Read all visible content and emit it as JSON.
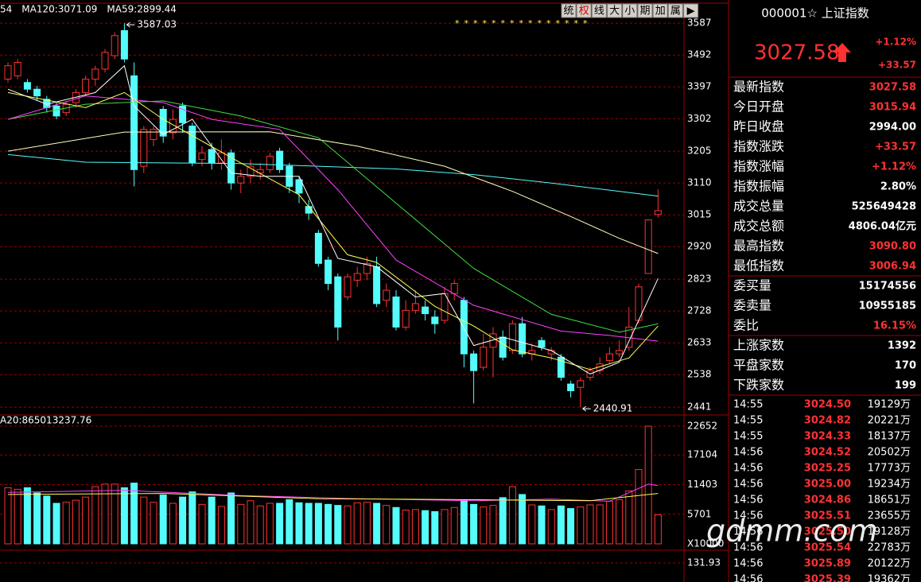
{
  "chart_data": {
    "type": "candlestick",
    "legend": [
      {
        "text": "54",
        "color": "#ffffff"
      },
      {
        "text": "MA120:3071.09",
        "color": "#54fcfc"
      },
      {
        "text": "MA59:2899.44",
        "color": "#ffff54"
      }
    ],
    "markers": "***************",
    "ylim": [
      2427,
      3604
    ],
    "yticks": [
      3587,
      3492,
      3397,
      3302,
      3205,
      3110,
      3015,
      2920,
      2823,
      2728,
      2633,
      2538,
      2441
    ],
    "grid": true,
    "up_color": "#ff3232",
    "down_color": "#54fcfc",
    "open": [
      3420,
      3430,
      3410,
      3390,
      3360,
      3340,
      3320,
      3350,
      3380,
      3420,
      3450,
      3490,
      3565,
      3430,
      3160,
      3240,
      3330,
      3260,
      3340,
      3280,
      3180,
      3210,
      3170,
      3200,
      3110,
      3130,
      3140,
      3150,
      3205,
      3160,
      3120,
      3040,
      2960,
      2880,
      2830,
      2770,
      2820,
      2840,
      2860,
      2760,
      2770,
      2680,
      2730,
      2740,
      2710,
      2700,
      2780,
      2760,
      2600,
      2560,
      2620,
      2650,
      2610,
      2690,
      2600,
      2640,
      2600,
      2590,
      2510,
      2500,
      2530,
      2550,
      2580,
      2600,
      2620,
      2700,
      2840,
      3015.94
    ],
    "high": [
      3470,
      3480,
      3420,
      3400,
      3370,
      3350,
      3355,
      3390,
      3430,
      3460,
      3510,
      3560,
      3587.03,
      3470,
      3280,
      3280,
      3340,
      3330,
      3350,
      3290,
      3220,
      3230,
      3240,
      3210,
      3150,
      3180,
      3170,
      3200,
      3215,
      3170,
      3130,
      3060,
      2970,
      2890,
      2840,
      2840,
      2860,
      2890,
      2890,
      2810,
      2790,
      2760,
      2790,
      2760,
      2730,
      2800,
      2820,
      2770,
      2610,
      2660,
      2680,
      2670,
      2700,
      2710,
      2630,
      2650,
      2620,
      2600,
      2520,
      2530,
      2560,
      2590,
      2620,
      2640,
      2740,
      2810,
      3000,
      3090.8
    ],
    "low": [
      3410,
      3420,
      3380,
      3355,
      3320,
      3300,
      3310,
      3335,
      3370,
      3400,
      3440,
      3480,
      3470,
      3100,
      3140,
      3220,
      3230,
      3240,
      3260,
      3160,
      3160,
      3150,
      3150,
      3090,
      3080,
      3110,
      3120,
      3140,
      3140,
      3080,
      3050,
      3000,
      2860,
      2790,
      2640,
      2760,
      2800,
      2820,
      2740,
      2740,
      2670,
      2670,
      2720,
      2700,
      2660,
      2690,
      2760,
      2560,
      2452,
      2550,
      2530,
      2580,
      2600,
      2590,
      2580,
      2610,
      2580,
      2520,
      2470,
      2440.91,
      2520,
      2540,
      2570,
      2590,
      2610,
      2690,
      2840,
      3006.94
    ],
    "close": [
      3460,
      3470,
      3390,
      3370,
      3335,
      3310,
      3345,
      3380,
      3420,
      3450,
      3500,
      3550,
      3480,
      3150,
      3270,
      3270,
      3250,
      3300,
      3290,
      3170,
      3200,
      3170,
      3200,
      3110,
      3130,
      3160,
      3150,
      3190,
      3150,
      3100,
      3080,
      3020,
      2870,
      2810,
      2680,
      2830,
      2840,
      2870,
      2750,
      2790,
      2680,
      2730,
      2750,
      2720,
      2690,
      2780,
      2810,
      2600,
      2550,
      2620,
      2660,
      2590,
      2690,
      2600,
      2610,
      2620,
      2610,
      2530,
      2490,
      2520,
      2550,
      2570,
      2600,
      2610,
      2680,
      2800,
      3000,
      3027.58
    ],
    "ma_lines": [
      {
        "color": "#54fcfc",
        "x": [
          0,
          8,
          16,
          24,
          32,
          40,
          48,
          56,
          67
        ],
        "values": [
          3195,
          3172,
          3170,
          3168,
          3160,
          3152,
          3135,
          3110,
          3071.09
        ]
      },
      {
        "color": "#ffffc0",
        "x": [
          0,
          12,
          27,
          36,
          45,
          52,
          58,
          63,
          67
        ],
        "values": [
          3205,
          3262,
          3263,
          3220,
          3160,
          3085,
          3010,
          2945,
          2899.44
        ]
      },
      {
        "color": "#40e040",
        "x": [
          0,
          8,
          16,
          24,
          32,
          40,
          48,
          56,
          63,
          67
        ],
        "values": [
          3300,
          3345,
          3355,
          3310,
          3245,
          3050,
          2855,
          2718,
          2665,
          2690
        ]
      },
      {
        "color": "#ff40ff",
        "x": [
          0,
          8,
          16,
          21,
          28,
          34,
          40,
          48,
          57,
          62,
          67
        ],
        "values": [
          3300,
          3370,
          3350,
          3300,
          3270,
          3090,
          2880,
          2745,
          2668,
          2655,
          2638
        ]
      },
      {
        "color": "#ffff54",
        "x": [
          0,
          8,
          12,
          16,
          24,
          30,
          35,
          38,
          44,
          48,
          52,
          56,
          60,
          64,
          67
        ],
        "values": [
          3380,
          3335,
          3380,
          3300,
          3170,
          3075,
          2896,
          2873,
          2742,
          2683,
          2612,
          2588,
          2553,
          2588,
          2683
        ]
      },
      {
        "color": "#ffffff",
        "x": [
          0,
          4,
          9,
          12,
          13,
          16,
          19,
          23,
          26,
          30,
          34,
          38,
          42,
          45,
          48,
          51,
          56,
          60,
          63,
          67
        ],
        "values": [
          3390,
          3345,
          3380,
          3460,
          3340,
          3255,
          3300,
          3140,
          3130,
          3130,
          2885,
          2860,
          2770,
          2780,
          2625,
          2650,
          2610,
          2540,
          2575,
          2825
        ]
      }
    ],
    "volume_legend": "A20:865013237.76",
    "volume": [
      10800,
      10500,
      10800,
      9800,
      9200,
      7800,
      8000,
      8400,
      9000,
      11000,
      11500,
      11500,
      10800,
      11700,
      9000,
      8000,
      9400,
      7800,
      9000,
      10000,
      7600,
      9000,
      7200,
      9800,
      7600,
      8300,
      7300,
      7800,
      7800,
      8500,
      7900,
      7800,
      7800,
      7600,
      7400,
      7300,
      7900,
      8000,
      7800,
      7400,
      7000,
      6500,
      6600,
      6400,
      6200,
      6600,
      7000,
      8500,
      7600,
      7100,
      7400,
      8900,
      11000,
      9500,
      7500,
      7300,
      6600,
      7300,
      6800,
      7100,
      7500,
      7500,
      8200,
      8500,
      10200,
      14300,
      22652,
      5600
    ],
    "volume_ylim": [
      0,
      23570
    ],
    "volume_yticks": [
      22652,
      17104,
      11403,
      5701
    ],
    "volume_unit": "X10000",
    "volume_ma_lines": [
      {
        "color": "#ff40ff",
        "x": [
          0,
          12,
          24,
          36,
          48,
          56,
          62,
          66,
          67
        ],
        "values": [
          9900,
          10300,
          9300,
          8700,
          8300,
          8600,
          8200,
          11500,
          11200
        ]
      },
      {
        "color": "#ffff54",
        "x": [
          0,
          16,
          32,
          48,
          60,
          67
        ],
        "values": [
          9500,
          9700,
          8700,
          8500,
          8300,
          9700
        ]
      }
    ],
    "indicator_ticks": [
      131.93
    ]
  },
  "toolbar": [
    "统",
    "权",
    "线",
    "大",
    "小",
    "期",
    "加",
    "属",
    "▶"
  ],
  "quote_panel": {
    "title": "000001☆ 上证指数",
    "price": "3027.58",
    "change_pct": "+1.12%",
    "change": "+33.57",
    "rows": [
      {
        "label": "最新指数",
        "value": "3027.58",
        "color": "#ff3232"
      },
      {
        "label": "今日开盘",
        "value": "3015.94",
        "color": "#ff3232"
      },
      {
        "label": "昨日收盘",
        "value": "2994.00",
        "color": "#ffffff"
      },
      {
        "label": "指数涨跌",
        "value": "+33.57",
        "color": "#ff3232"
      },
      {
        "label": "指数涨幅",
        "value": "+1.12%",
        "color": "#ff3232"
      },
      {
        "label": "指数振幅",
        "value": "2.80%",
        "color": "#ffffff"
      },
      {
        "label": "成交总量",
        "value": "525649428",
        "color": "#ffffff"
      },
      {
        "label": "成交总额",
        "value": "4806.04亿元",
        "color": "#ffffff"
      },
      {
        "label": "最高指数",
        "value": "3090.80",
        "color": "#ff3232"
      },
      {
        "label": "最低指数",
        "value": "3006.94",
        "color": "#ff3232"
      },
      {
        "label": "委买量",
        "value": "15174556",
        "color": "#ffffff"
      },
      {
        "label": "委卖量",
        "value": "10955185",
        "color": "#ffffff"
      },
      {
        "label": "委比",
        "value": "16.15%",
        "color": "#ff3232"
      },
      {
        "label": "上涨家数",
        "value": "1392",
        "color": "#ffffff"
      },
      {
        "label": "平盘家数",
        "value": "170",
        "color": "#ffffff"
      },
      {
        "label": "下跌家数",
        "value": "199",
        "color": "#ffffff"
      }
    ],
    "trades": [
      [
        "14:55",
        "3024.50",
        "19129万"
      ],
      [
        "14:55",
        "3024.82",
        "20221万"
      ],
      [
        "14:55",
        "3024.33",
        "18137万"
      ],
      [
        "14:56",
        "3024.52",
        "20502万"
      ],
      [
        "14:56",
        "3025.25",
        "17773万"
      ],
      [
        "14:56",
        "3025.00",
        "19234万"
      ],
      [
        "14:56",
        "3024.86",
        "18651万"
      ],
      [
        "14:56",
        "3025.51",
        "23655万"
      ],
      [
        "14:56",
        "3025.50",
        "19128万"
      ],
      [
        "14:56",
        "3025.54",
        "22783万"
      ],
      [
        "14:56",
        "3025.89",
        "20122万"
      ],
      [
        "14:56",
        "3025.39",
        "19362万"
      ]
    ]
  },
  "watermark": "gdmm.com"
}
